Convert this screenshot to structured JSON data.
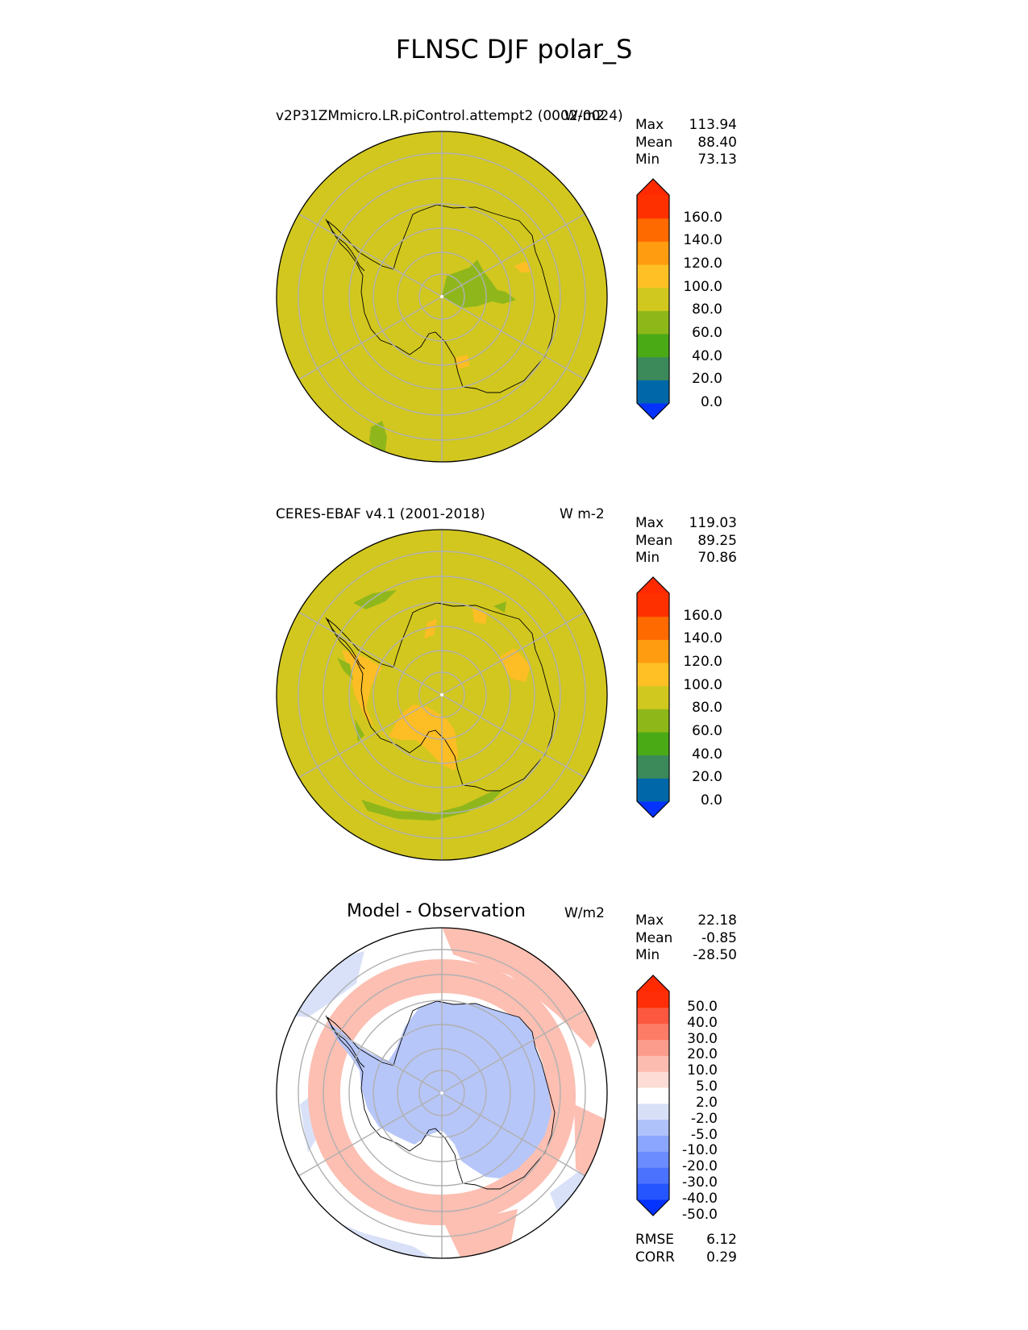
{
  "title": "FLNSC DJF polar_S",
  "panels": [
    {
      "id": "test",
      "title": "v2P31ZMmicro.LR.piControl.attempt2 (0002-0024)",
      "units": "W/m2",
      "stats": [
        [
          "Max",
          "113.94"
        ],
        [
          "Mean",
          "88.40"
        ],
        [
          "Min",
          "73.13"
        ]
      ],
      "colorbar": {
        "colors": [
          "#0432ff",
          "#0068a8",
          "#3c8a5a",
          "#4aaa16",
          "#8eb81a",
          "#d0c81e",
          "#fec024",
          "#ff9c10",
          "#ff6a00",
          "#ff3000",
          "#ff2a00"
        ],
        "labels": [
          "160.0",
          "140.0",
          "120.0",
          "100.0",
          "80.0",
          "60.0",
          "40.0",
          "20.0",
          "0.0"
        ]
      },
      "map": {
        "background": "#d2c71f",
        "regions": [
          {
            "name": "green-interior-east",
            "color": "#8fb71b"
          },
          {
            "name": "orange-patch",
            "color": "#fdbd24"
          },
          {
            "name": "green-patch-offshore",
            "color": "#8fb71b"
          }
        ]
      }
    },
    {
      "id": "reference",
      "title": "CERES-EBAF v4.1 (2001-2018)",
      "units": "W m-2",
      "stats": [
        [
          "Max",
          "119.03"
        ],
        [
          "Mean",
          "89.25"
        ],
        [
          "Min",
          "70.86"
        ]
      ],
      "colorbar": {
        "colors": [
          "#0432ff",
          "#0068a8",
          "#3c8a5a",
          "#4aaa16",
          "#8eb81a",
          "#d0c81e",
          "#fec024",
          "#ff9c10",
          "#ff6a00",
          "#ff3000",
          "#ff2a00"
        ],
        "labels": [
          "160.0",
          "140.0",
          "120.0",
          "100.0",
          "80.0",
          "60.0",
          "40.0",
          "20.0",
          "0.0"
        ]
      },
      "map": {
        "background": "#d2c71f",
        "regions": [
          {
            "name": "orange-west-antarctica",
            "color": "#fdbd24"
          },
          {
            "name": "green-ring",
            "color": "#8fb71b"
          }
        ]
      }
    },
    {
      "id": "diff",
      "title": "Model - Observation",
      "units": "W/m2",
      "stats": [
        [
          "Max",
          "22.18"
        ],
        [
          "Mean",
          "-0.85"
        ],
        [
          "Min",
          "-28.50"
        ]
      ],
      "colorbar": {
        "colors": [
          "#0432ff",
          "#2455ff",
          "#4a72ff",
          "#6a8cff",
          "#8aa6ff",
          "#b0c2fa",
          "#d8e0f8",
          "#ffffff",
          "#fcdcd4",
          "#fcbcb0",
          "#fc9c8c",
          "#fc7c66",
          "#fc5840",
          "#ff2e08",
          "#ff2a00"
        ],
        "labels": [
          "50.0",
          "40.0",
          "30.0",
          "20.0",
          "10.0",
          "5.0",
          "2.0",
          "-2.0",
          "-5.0",
          "-10.0",
          "-20.0",
          "-30.0",
          "-40.0",
          "-50.0"
        ]
      },
      "extra_stats": [
        [
          "RMSE",
          "6.12"
        ],
        [
          "CORR",
          "0.29"
        ]
      ],
      "map": {
        "background": "#ffffff",
        "regions": [
          {
            "name": "blue-antarctica",
            "color": "#b7c6f8"
          },
          {
            "name": "red-ring",
            "color": "#fcbfb2"
          },
          {
            "name": "blue-outer",
            "color": "#d9e1f9"
          }
        ]
      }
    }
  ]
}
